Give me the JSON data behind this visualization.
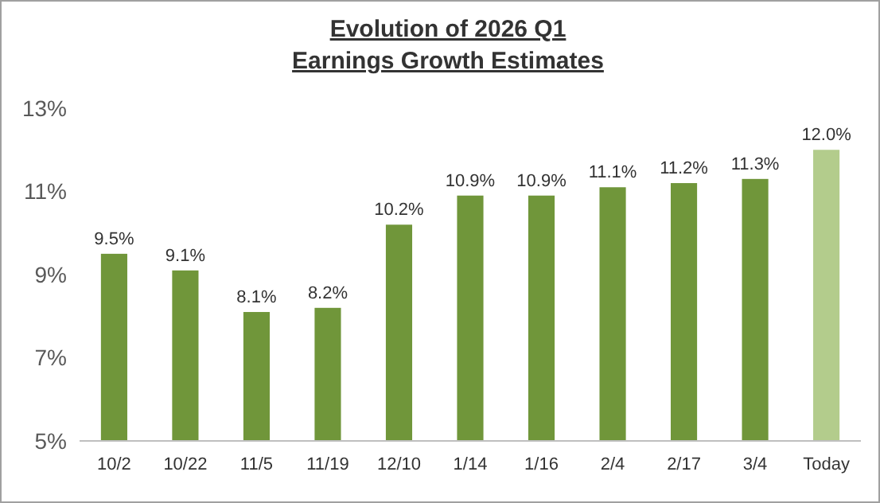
{
  "chart_data": {
    "type": "bar",
    "title": "Evolution of 2026 Q1\nEarnings Growth Estimates",
    "categories": [
      "10/2",
      "10/22",
      "11/5",
      "11/19",
      "12/10",
      "1/14",
      "1/16",
      "2/4",
      "2/17",
      "3/4",
      "Today"
    ],
    "values": [
      9.5,
      9.1,
      8.1,
      8.2,
      10.2,
      10.9,
      10.9,
      11.1,
      11.2,
      11.3,
      12.0
    ],
    "colors": [
      "#70963a",
      "#70963a",
      "#70963a",
      "#70963a",
      "#70963a",
      "#70963a",
      "#70963a",
      "#70963a",
      "#70963a",
      "#70963a",
      "#b3cc8c"
    ],
    "value_labels": [
      "9.5%",
      "9.1%",
      "8.1%",
      "8.2%",
      "10.2%",
      "10.9%",
      "10.9%",
      "11.1%",
      "11.2%",
      "11.3%",
      "12.0%"
    ],
    "ylim": [
      5,
      13
    ],
    "yticks": [
      {
        "value": 5,
        "label": "5%"
      },
      {
        "value": 7,
        "label": "7%"
      },
      {
        "value": 9,
        "label": "9%"
      },
      {
        "value": 11,
        "label": "11%"
      },
      {
        "value": 13,
        "label": "13%"
      }
    ],
    "grid": false
  }
}
